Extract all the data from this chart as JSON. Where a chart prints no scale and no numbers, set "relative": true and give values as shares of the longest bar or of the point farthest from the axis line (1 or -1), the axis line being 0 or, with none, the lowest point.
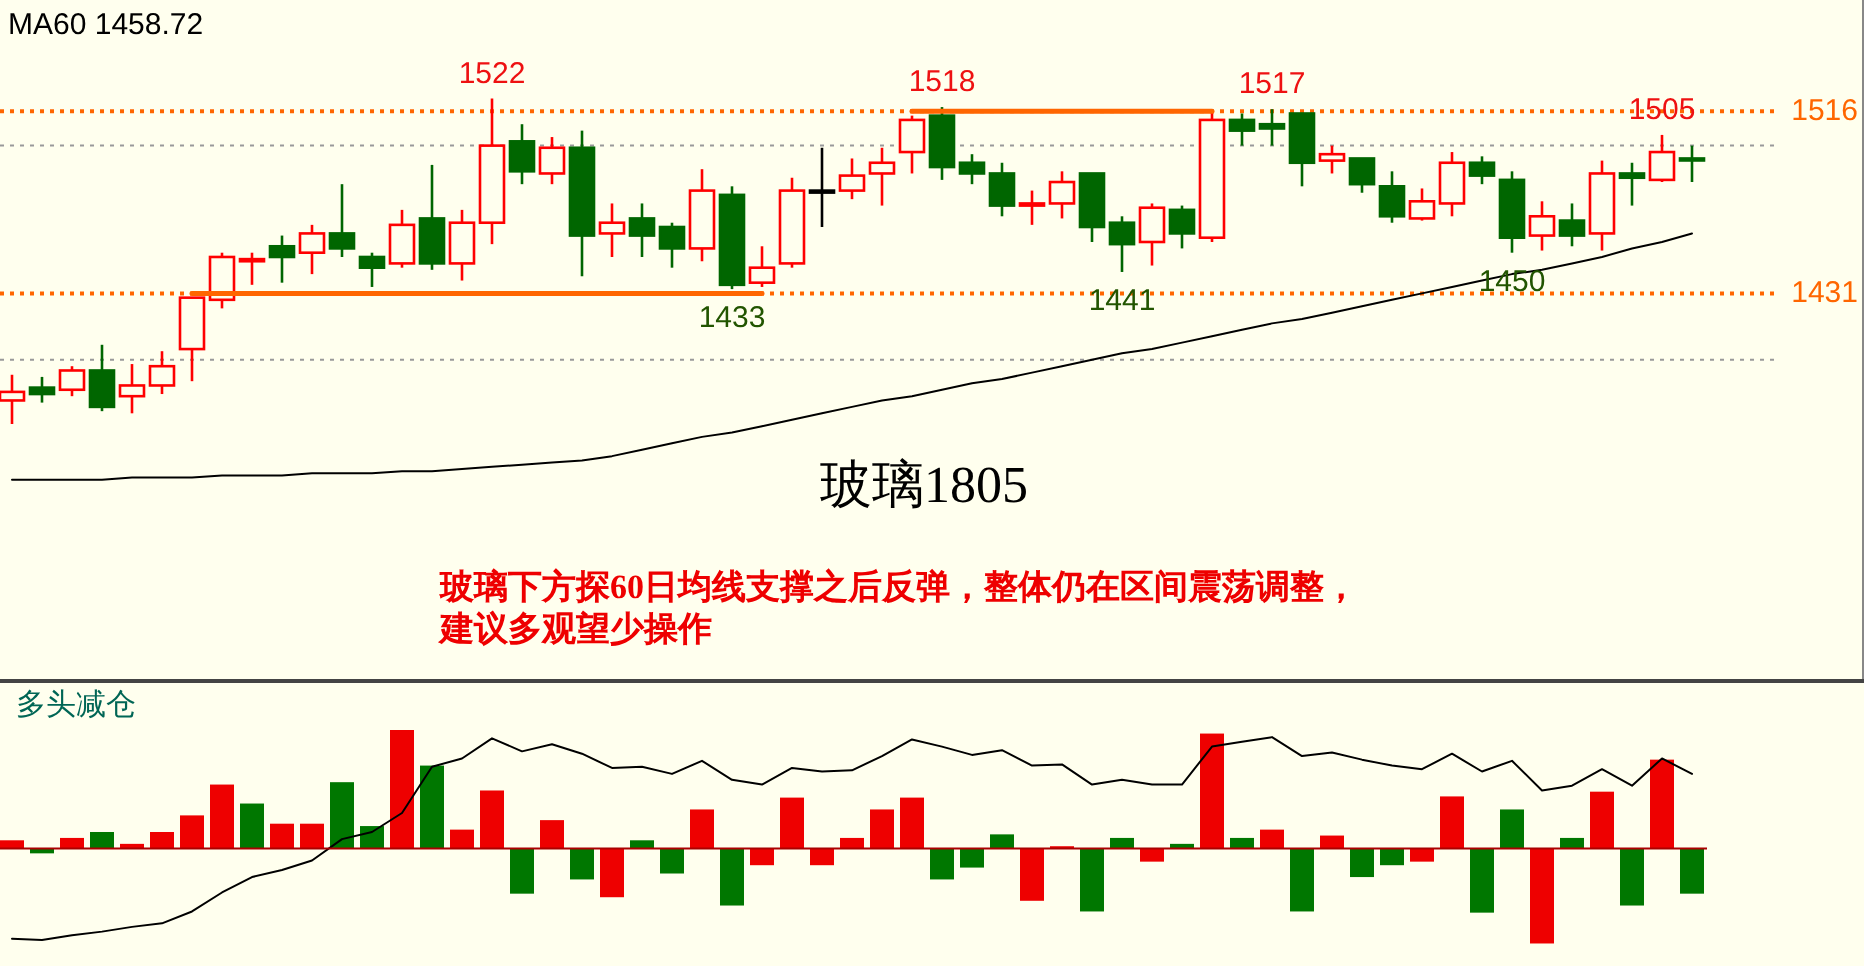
{
  "chart_data": [
    {
      "type": "candlestick",
      "title": "玻璃1805",
      "annotations": [
        "玻璃下方探60日均线支撑之后反弹，整体仍在区间震荡调整，",
        "建议多观望少操作",
        {
          "text": "1522",
          "y": 1522
        },
        {
          "text": "1518",
          "y": 1518
        },
        {
          "text": "1517",
          "y": 1517
        },
        {
          "text": "1505",
          "y": 1505
        },
        {
          "text": "1433",
          "y": 1433
        },
        {
          "text": "1441",
          "y": 1441
        },
        {
          "text": "1450",
          "y": 1450
        }
      ],
      "categories": [
        null,
        null,
        null,
        null,
        null,
        null,
        null,
        null,
        null,
        null,
        null,
        null,
        null,
        null,
        null,
        null,
        null,
        null,
        null,
        null,
        null,
        null,
        null,
        null,
        null,
        null,
        null,
        null,
        null,
        null,
        null,
        null,
        null,
        null,
        null,
        null,
        null,
        null,
        null,
        null,
        null,
        null,
        null,
        null,
        null,
        null,
        null,
        null,
        null,
        null,
        null,
        null,
        null,
        null,
        null,
        null,
        null
      ],
      "ohlc": [
        [
          1381,
          1393,
          1370,
          1385
        ],
        [
          1387,
          1392,
          1380,
          1384
        ],
        [
          1386,
          1397,
          1383,
          1395
        ],
        [
          1395,
          1407,
          1376,
          1378
        ],
        [
          1383,
          1398,
          1375,
          1388
        ],
        [
          1388,
          1404,
          1384,
          1397
        ],
        [
          1405,
          1429,
          1390,
          1429
        ],
        [
          1428,
          1450,
          1424,
          1448
        ],
        [
          1446,
          1450,
          1435,
          1447
        ],
        [
          1453,
          1458,
          1436,
          1448
        ],
        [
          1450,
          1463,
          1440,
          1459
        ],
        [
          1459,
          1482,
          1448,
          1452
        ],
        [
          1448,
          1450,
          1434,
          1443
        ],
        [
          1445,
          1470,
          1443,
          1463
        ],
        [
          1466,
          1491,
          1442,
          1445
        ],
        [
          1445,
          1470,
          1437,
          1464
        ],
        [
          1464,
          1522,
          1454,
          1500
        ],
        [
          1502,
          1510,
          1482,
          1488
        ],
        [
          1487,
          1504,
          1482,
          1499
        ],
        [
          1499,
          1507,
          1439,
          1458
        ],
        [
          1459,
          1473,
          1448,
          1464
        ],
        [
          1466,
          1473,
          1448,
          1458
        ],
        [
          1462,
          1464,
          1443,
          1452
        ],
        [
          1452,
          1489,
          1446,
          1479
        ],
        [
          1477,
          1481,
          1433,
          1435
        ],
        [
          1436,
          1453,
          1434,
          1443
        ],
        [
          1445,
          1485,
          1443,
          1479
        ],
        [
          1479,
          1499,
          1462,
          1479
        ],
        [
          1479,
          1494,
          1475,
          1486
        ],
        [
          1487,
          1499,
          1472,
          1492
        ],
        [
          1497,
          1514,
          1487,
          1512
        ],
        [
          1514,
          1518,
          1484,
          1490
        ],
        [
          1492,
          1496,
          1482,
          1487
        ],
        [
          1487,
          1492,
          1467,
          1472
        ],
        [
          1472,
          1479,
          1463,
          1473
        ],
        [
          1473,
          1488,
          1466,
          1483
        ],
        [
          1487,
          1487,
          1455,
          1462
        ],
        [
          1464,
          1467,
          1441,
          1454
        ],
        [
          1455,
          1473,
          1444,
          1471
        ],
        [
          1470,
          1472,
          1452,
          1459
        ],
        [
          1457,
          1516,
          1455,
          1512
        ],
        [
          1512,
          1515,
          1500,
          1507
        ],
        [
          1510,
          1517,
          1500,
          1508
        ],
        [
          1515,
          1515,
          1481,
          1492
        ],
        [
          1493,
          1500,
          1487,
          1496
        ],
        [
          1494,
          1494,
          1478,
          1482
        ],
        [
          1481,
          1488,
          1464,
          1467
        ],
        [
          1466,
          1480,
          1465,
          1474
        ],
        [
          1473,
          1497,
          1467,
          1492
        ],
        [
          1492,
          1495,
          1482,
          1486
        ],
        [
          1484,
          1488,
          1450,
          1457
        ],
        [
          1458,
          1474,
          1451,
          1467
        ],
        [
          1465,
          1473,
          1453,
          1458
        ],
        [
          1459,
          1493,
          1451,
          1487
        ],
        [
          1487,
          1492,
          1472,
          1485
        ],
        [
          1484,
          1505,
          1483,
          1497
        ],
        [
          1494,
          1500,
          1483,
          1494
        ]
      ],
      "colors": [
        "#ff0000",
        "#006600",
        "#ff0000",
        "#006600",
        "#ff0000",
        "#ff0000",
        "#ff0000",
        "#ff0000",
        "#ff0000",
        "#006600",
        "#ff0000",
        "#006600",
        "#006600",
        "#ff0000",
        "#006600",
        "#ff0000",
        "#ff0000",
        "#006600",
        "#ff0000",
        "#006600",
        "#ff0000",
        "#006600",
        "#006600",
        "#ff0000",
        "#006600",
        "#ff0000",
        "#ff0000",
        "#000000",
        "#ff0000",
        "#ff0000",
        "#ff0000",
        "#006600",
        "#006600",
        "#006600",
        "#ff0000",
        "#ff0000",
        "#006600",
        "#006600",
        "#ff0000",
        "#006600",
        "#ff0000",
        "#006600",
        "#006600",
        "#006600",
        "#ff0000",
        "#006600",
        "#006600",
        "#ff0000",
        "#ff0000",
        "#006600",
        "#006600",
        "#ff0000",
        "#006600",
        "#ff0000",
        "#006600",
        "#ff0000",
        "#006600"
      ],
      "series": [
        {
          "name": "MA60 1458.72",
          "type": "line",
          "color": "#000000",
          "values": [
            1344,
            1344,
            1344,
            1344,
            1345,
            1345,
            1345,
            1346,
            1346,
            1346,
            1347,
            1347,
            1347,
            1348,
            1348,
            1349,
            1350,
            1351,
            1352,
            1353,
            1355,
            1358,
            1361,
            1364,
            1366,
            1369,
            1372,
            1375,
            1378,
            1381,
            1383,
            1386,
            1389,
            1391,
            1394,
            1397,
            1400,
            1403,
            1405,
            1408,
            1411,
            1414,
            1417,
            1419,
            1422,
            1425,
            1428,
            1431,
            1434,
            1437,
            1440,
            1442,
            1445,
            1448,
            1452,
            1455,
            1459
          ]
        },
        {
          "type": "line",
          "color": "#ff6600",
          "values": [
            null,
            null,
            null,
            null,
            null,
            null,
            1431,
            1431,
            1431,
            1431,
            1431,
            1431,
            1431,
            1431,
            1431,
            1431,
            1431,
            1431,
            1431,
            1431,
            1431,
            1431,
            1431,
            1431,
            1431,
            1431,
            null,
            null,
            null,
            null,
            null,
            null,
            null,
            null,
            null,
            null,
            null,
            null,
            null,
            null,
            null,
            null,
            null,
            null,
            null,
            null,
            null,
            null,
            null,
            null,
            null,
            null,
            null,
            null,
            null,
            null,
            null
          ]
        },
        {
          "type": "line",
          "color": "#ff6600",
          "values": [
            null,
            null,
            null,
            null,
            null,
            null,
            null,
            null,
            null,
            null,
            null,
            null,
            null,
            null,
            null,
            null,
            null,
            null,
            null,
            null,
            null,
            null,
            null,
            null,
            null,
            null,
            null,
            null,
            null,
            null,
            1516,
            1516,
            1516,
            1516,
            1516,
            1516,
            1516,
            1516,
            1516,
            1516,
            1516,
            null,
            null,
            null,
            null,
            null,
            null,
            null,
            null,
            null,
            null,
            null,
            null,
            null,
            null,
            null,
            null
          ]
        }
      ],
      "ylim": [
        1250,
        1568
      ],
      "yticks": [
        1431,
        1516
      ],
      "ref_lines": [
        {
          "axis": "y",
          "value": 1516,
          "color": "#ff6600",
          "line_style": "dotted"
        },
        {
          "axis": "y",
          "value": 1431,
          "color": "#ff6600",
          "line_style": "dotted"
        },
        {
          "axis": "y",
          "value": 1500,
          "color": "#999999",
          "line_style": "dotted"
        },
        {
          "axis": "y",
          "value": 1400,
          "color": "#999999",
          "line_style": "dotted"
        }
      ]
    },
    {
      "type": "bar",
      "title": "多头减仓",
      "relative": true,
      "ref_lines": [
        {
          "axis": "y",
          "value": 0,
          "color": "#aa0000",
          "line_style": "solid"
        }
      ],
      "categories": [
        null,
        null,
        null,
        null,
        null,
        null,
        null,
        null,
        null,
        null,
        null,
        null,
        null,
        null,
        null,
        null,
        null,
        null,
        null,
        null,
        null,
        null,
        null,
        null,
        null,
        null,
        null,
        null,
        null,
        null,
        null,
        null,
        null,
        null,
        null,
        null,
        null,
        null,
        null,
        null,
        null,
        null,
        null,
        null,
        null,
        null,
        null,
        null,
        null,
        null,
        null,
        null,
        null,
        null,
        null,
        null,
        null
      ],
      "series": [
        {
          "type": "bar",
          "colors": [
            "#ee0000",
            "#007700",
            "#ee0000",
            "#007700",
            "#ee0000",
            "#ee0000",
            "#ee0000",
            "#ee0000",
            "#007700",
            "#ee0000",
            "#ee0000",
            "#007700",
            "#007700",
            "#ee0000",
            "#007700",
            "#ee0000",
            "#ee0000",
            "#007700",
            "#ee0000",
            "#007700",
            "#ee0000",
            "#007700",
            "#007700",
            "#ee0000",
            "#007700",
            "#ee0000",
            "#ee0000",
            "#ee0000",
            "#ee0000",
            "#ee0000",
            "#ee0000",
            "#007700",
            "#007700",
            "#007700",
            "#ee0000",
            "#ee0000",
            "#007700",
            "#007700",
            "#ee0000",
            "#007700",
            "#ee0000",
            "#007700",
            "#ee0000",
            "#007700",
            "#ee0000",
            "#007700",
            "#007700",
            "#ee0000",
            "#ee0000",
            "#007700",
            "#007700",
            "#ee0000",
            "#007700",
            "#ee0000",
            "#007700",
            "#ee0000",
            "#007700"
          ],
          "values": [
            0.07,
            -0.04,
            0.09,
            0.14,
            0.04,
            0.14,
            0.28,
            0.54,
            0.38,
            0.21,
            0.21,
            0.56,
            0.19,
            1,
            0.7,
            0.16,
            0.49,
            -0.38,
            0.24,
            -0.26,
            -0.41,
            0.07,
            -0.21,
            0.33,
            -0.48,
            -0.14,
            0.43,
            -0.14,
            0.09,
            0.33,
            0.43,
            -0.26,
            -0.16,
            0.12,
            -0.44,
            0.02,
            -0.53,
            0.09,
            -0.11,
            0.04,
            0.97,
            0.09,
            0.16,
            -0.53,
            0.11,
            -0.24,
            -0.14,
            -0.11,
            0.44,
            -0.54,
            0.33,
            -0.8,
            0.09,
            0.48,
            -0.48,
            0.75,
            -0.38
          ]
        },
        {
          "type": "line",
          "color": "#000000",
          "values": [
            -0.76,
            -0.77,
            -0.73,
            -0.7,
            -0.66,
            -0.63,
            -0.53,
            -0.37,
            -0.24,
            -0.18,
            -0.1,
            0.08,
            0.14,
            0.3,
            0.69,
            0.76,
            0.93,
            0.82,
            0.88,
            0.8,
            0.68,
            0.69,
            0.63,
            0.74,
            0.58,
            0.54,
            0.68,
            0.65,
            0.66,
            0.78,
            0.92,
            0.86,
            0.79,
            0.83,
            0.7,
            0.71,
            0.54,
            0.58,
            0.54,
            0.54,
            0.86,
            0.9,
            0.94,
            0.78,
            0.81,
            0.75,
            0.7,
            0.67,
            0.8,
            0.65,
            0.74,
            0.49,
            0.53,
            0.67,
            0.53,
            0.76,
            0.63
          ]
        }
      ]
    }
  ]
}
